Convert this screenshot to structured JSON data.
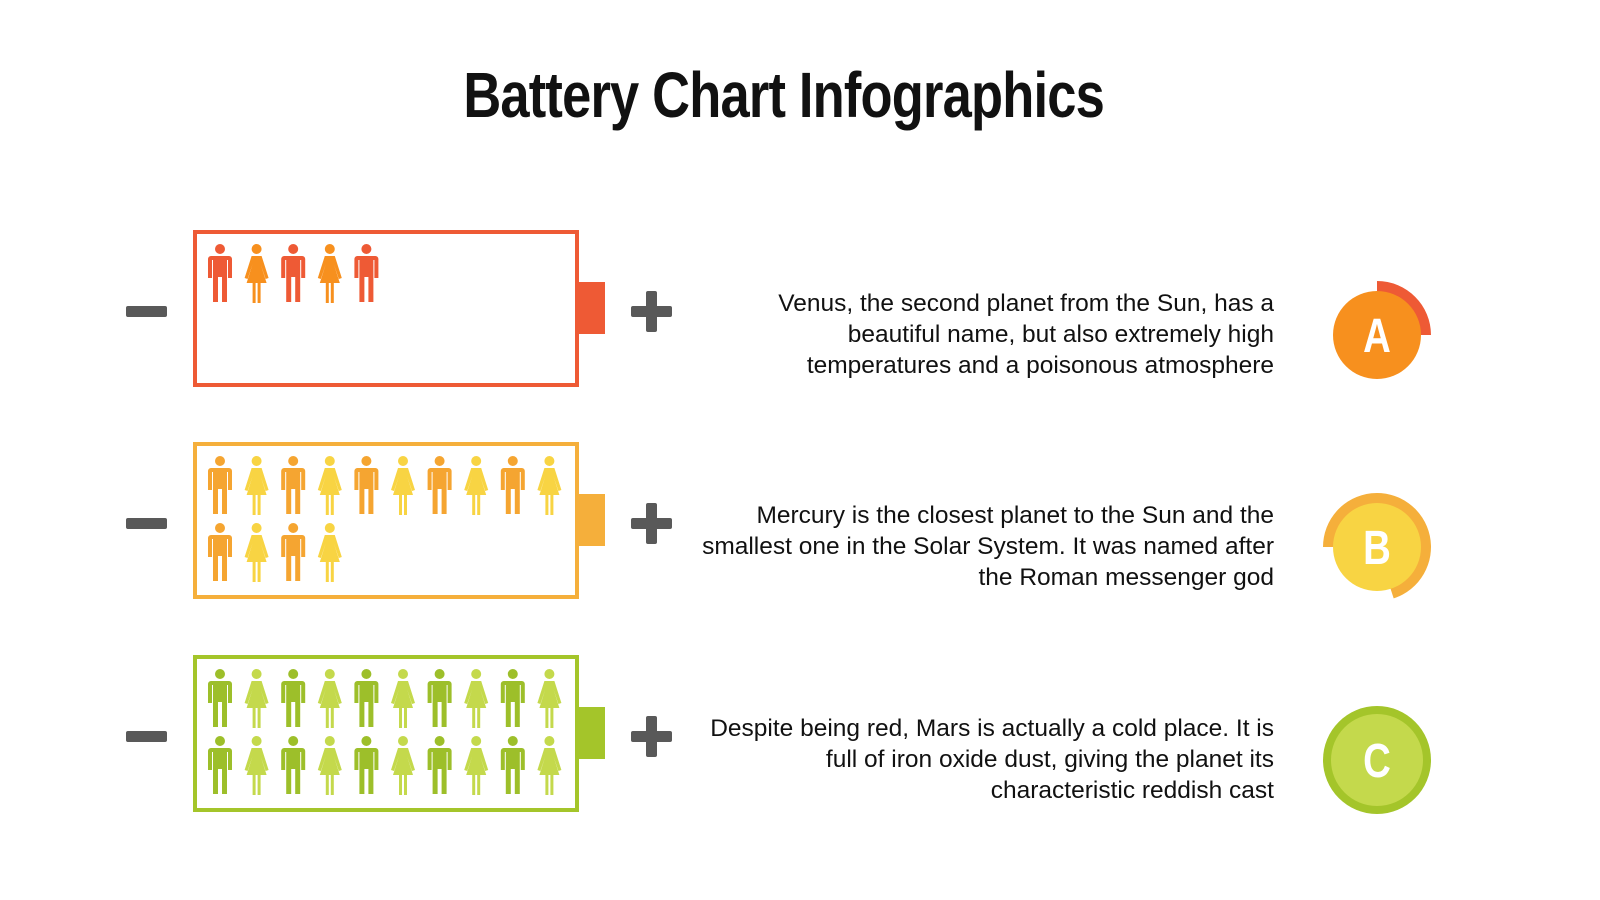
{
  "title": "Battery Chart Infographics",
  "rows": [
    {
      "letter": "A",
      "text": "Venus, the second planet from the Sun, has a beautiful name, but also extremely high temperatures and a poisonous atmosphere",
      "people_filled": 5,
      "people_total": 20,
      "percent": 25,
      "battery_color": "#EE5A35",
      "man_color": "#EE5A35",
      "woman_color": "#F7901E",
      "badge_color": "#F7901E",
      "ring_color": "#EE5A35"
    },
    {
      "letter": "B",
      "text": "Mercury is the closest planet to the Sun and the smallest one in the Solar System. It was named after the Roman messenger god",
      "people_filled": 14,
      "people_total": 20,
      "percent": 70,
      "battery_color": "#F5AF3B",
      "man_color": "#F5A531",
      "woman_color": "#F8D443",
      "badge_color": "#F8D443",
      "ring_color": "#F5AF3B"
    },
    {
      "letter": "C",
      "text": "Despite being red, Mars is actually a cold place. It is full of iron oxide dust, giving the planet its characteristic reddish cast",
      "people_filled": 20,
      "people_total": 20,
      "percent": 100,
      "battery_color": "#A4C52A",
      "man_color": "#9DBF2A",
      "woman_color": "#C4D94C",
      "badge_color": "#C4D94C",
      "ring_color": "#A4C52A"
    }
  ]
}
